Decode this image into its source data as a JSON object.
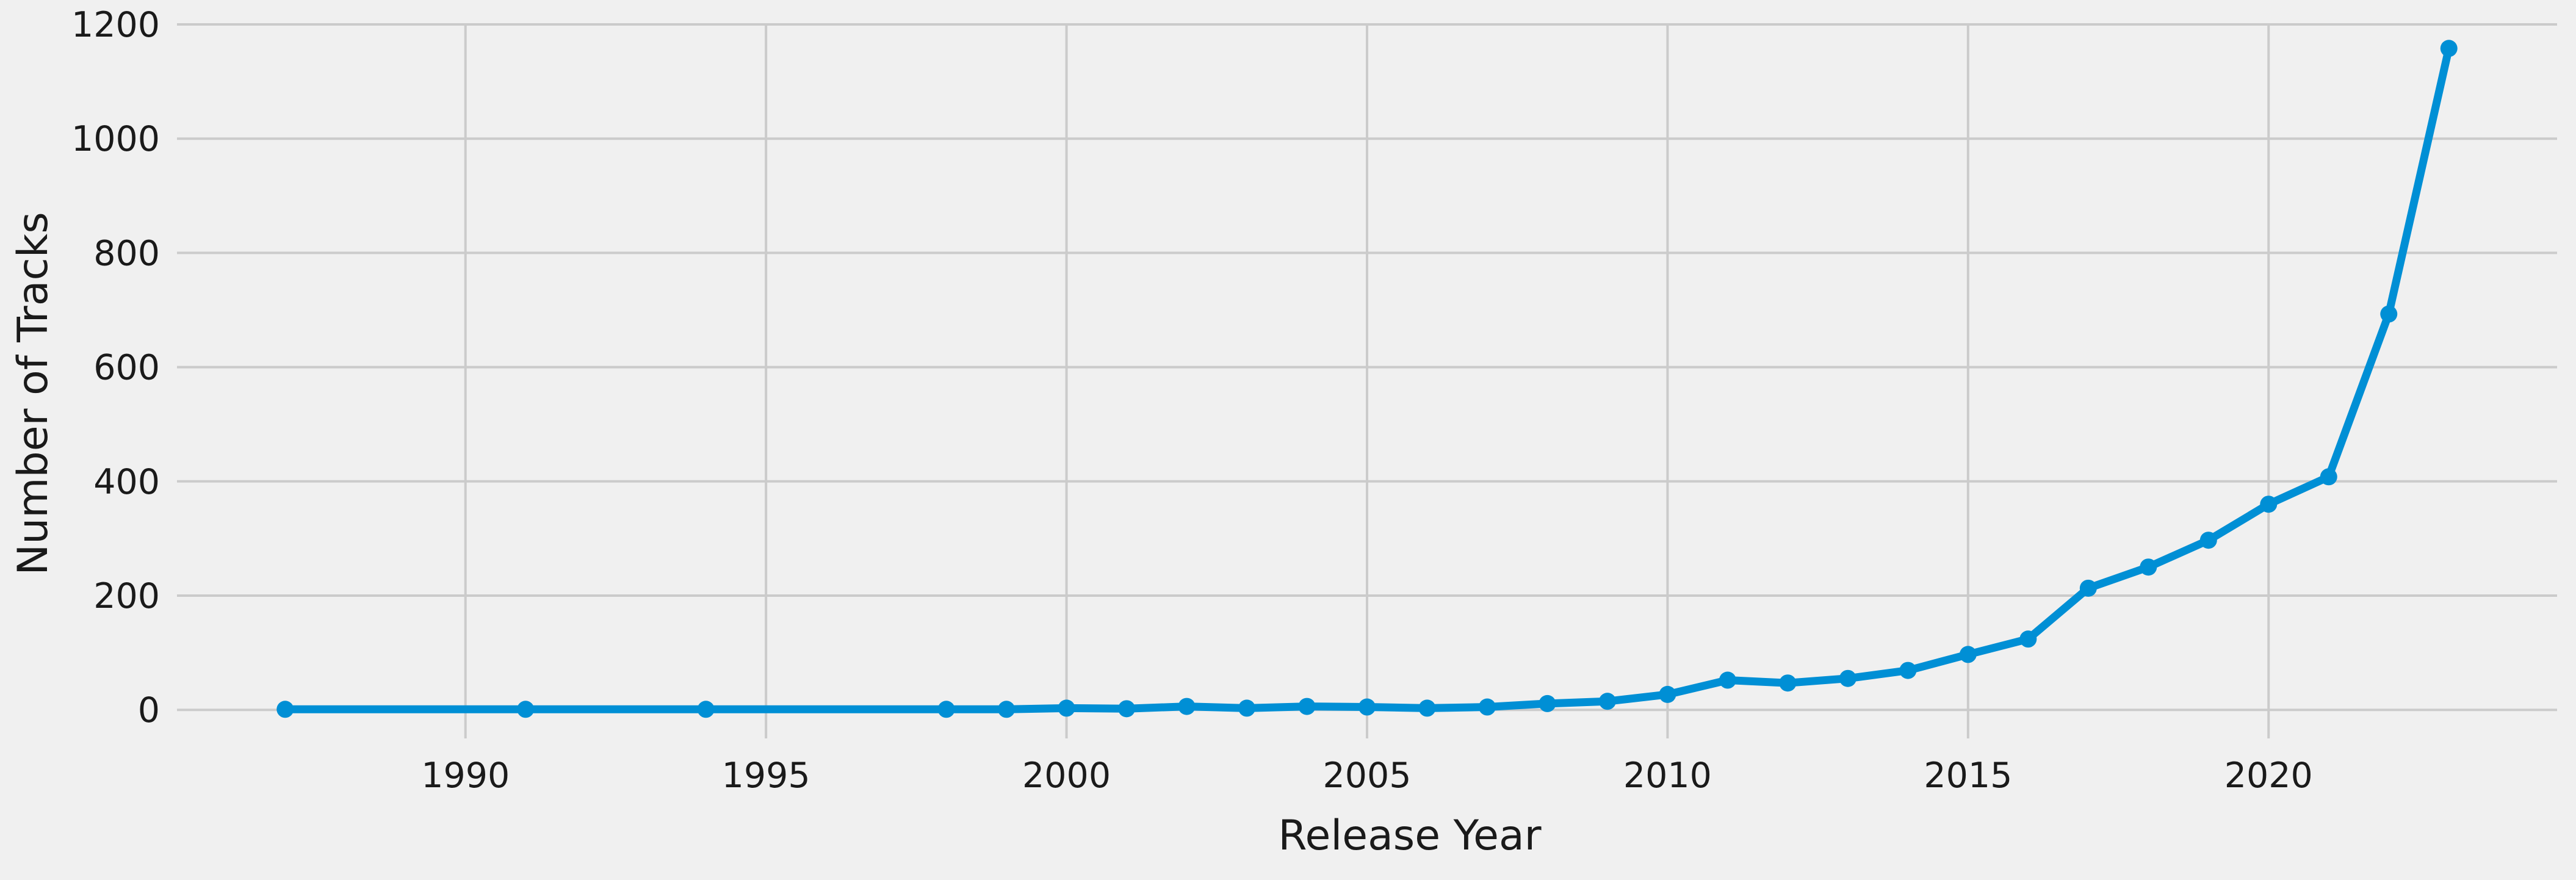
{
  "chart_data": {
    "type": "line",
    "title": "",
    "xlabel": "Release Year",
    "ylabel": "Number of Tracks",
    "xlim": [
      1985.2,
      1987.0
    ],
    "ylim": [
      -50,
      1200
    ],
    "x_ticks": [
      1990,
      1995,
      2000,
      2005,
      2010,
      2015,
      2020
    ],
    "y_ticks": [
      0,
      200,
      400,
      600,
      800,
      1000,
      1200
    ],
    "grid": true,
    "legend": "none",
    "series": [
      {
        "color": "#008fd5",
        "x": [
          1987,
          1991,
          1994,
          1998,
          1999,
          2000,
          2001,
          2002,
          2003,
          2004,
          2005,
          2006,
          2007,
          2008,
          2009,
          2010,
          2011,
          2012,
          2013,
          2014,
          2015,
          2016,
          2017,
          2018,
          2019,
          2020,
          2021,
          2022,
          2023
        ],
        "y": [
          1,
          1,
          1,
          1,
          1,
          3,
          2,
          6,
          3,
          6,
          5,
          3,
          5,
          11,
          15,
          27,
          52,
          47,
          55,
          69,
          97,
          124,
          213,
          250,
          297,
          360,
          408,
          693,
          1158
        ]
      }
    ]
  }
}
